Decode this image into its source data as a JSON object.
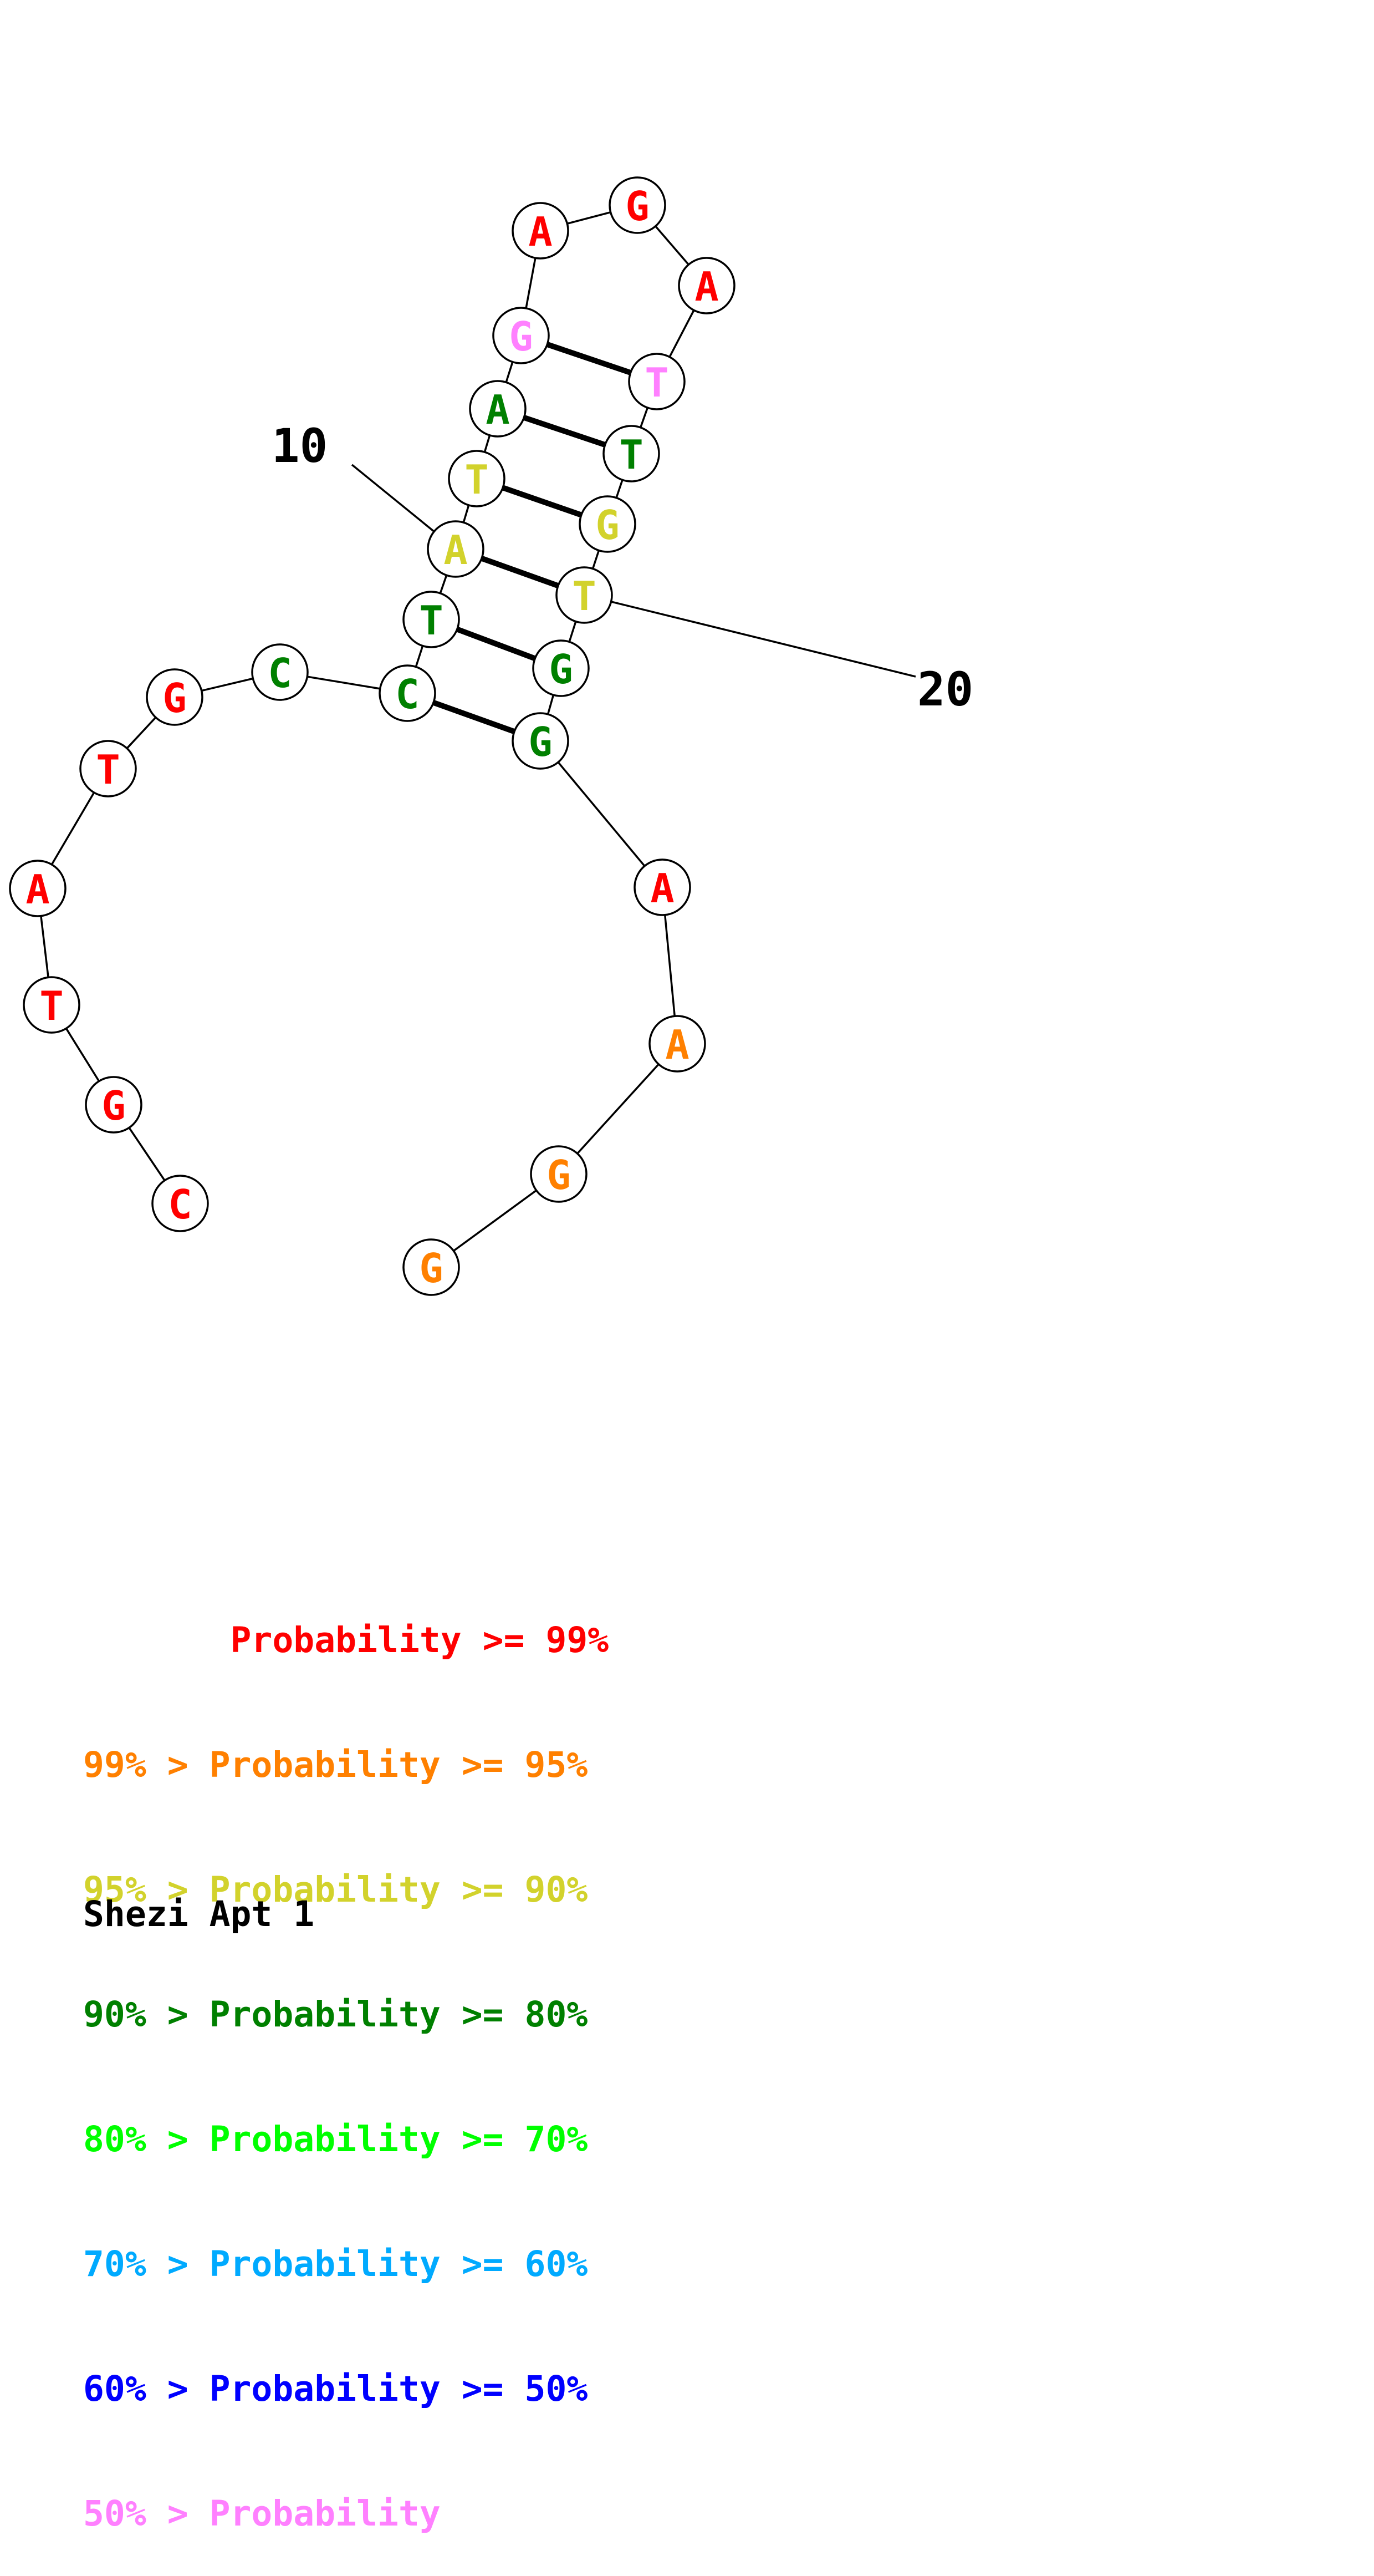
{
  "colors": {
    "p99": "#ff0000",
    "p95": "#ff8000",
    "p90": "#d2d22c",
    "p80": "#008000",
    "p70": "#00ff00",
    "p60": "#00aaff",
    "p50": "#0000ff",
    "plow": "#ff80ff"
  },
  "structure": {
    "nucleotides": [
      {
        "index": 1,
        "base": "C",
        "prob_class": "p99"
      },
      {
        "index": 2,
        "base": "G",
        "prob_class": "p99"
      },
      {
        "index": 3,
        "base": "T",
        "prob_class": "p99"
      },
      {
        "index": 4,
        "base": "A",
        "prob_class": "p99"
      },
      {
        "index": 5,
        "base": "T",
        "prob_class": "p99"
      },
      {
        "index": 6,
        "base": "G",
        "prob_class": "p99"
      },
      {
        "index": 7,
        "base": "C",
        "prob_class": "p80"
      },
      {
        "index": 8,
        "base": "C",
        "prob_class": "p80"
      },
      {
        "index": 9,
        "base": "T",
        "prob_class": "p80"
      },
      {
        "index": 10,
        "base": "A",
        "prob_class": "p90"
      },
      {
        "index": 11,
        "base": "T",
        "prob_class": "p90"
      },
      {
        "index": 12,
        "base": "A",
        "prob_class": "p80"
      },
      {
        "index": 13,
        "base": "G",
        "prob_class": "plow"
      },
      {
        "index": 14,
        "base": "A",
        "prob_class": "p99"
      },
      {
        "index": 15,
        "base": "G",
        "prob_class": "p99"
      },
      {
        "index": 16,
        "base": "A",
        "prob_class": "p99"
      },
      {
        "index": 17,
        "base": "T",
        "prob_class": "plow"
      },
      {
        "index": 18,
        "base": "T",
        "prob_class": "p80"
      },
      {
        "index": 19,
        "base": "G",
        "prob_class": "p90"
      },
      {
        "index": 20,
        "base": "T",
        "prob_class": "p90"
      },
      {
        "index": 21,
        "base": "G",
        "prob_class": "p80"
      },
      {
        "index": 22,
        "base": "G",
        "prob_class": "p80"
      },
      {
        "index": 23,
        "base": "A",
        "prob_class": "p99"
      },
      {
        "index": 24,
        "base": "A",
        "prob_class": "p95"
      },
      {
        "index": 25,
        "base": "G",
        "prob_class": "p95"
      },
      {
        "index": 26,
        "base": "G",
        "prob_class": "p95"
      }
    ],
    "pairs": [
      [
        8,
        22
      ],
      [
        9,
        21
      ],
      [
        10,
        20
      ],
      [
        11,
        19
      ],
      [
        12,
        18
      ],
      [
        13,
        17
      ]
    ],
    "position_labels": [
      {
        "text": "10",
        "nucleotide": 10
      },
      {
        "text": "20",
        "nucleotide": 20
      }
    ]
  },
  "legend": [
    {
      "text": "       Probability >= 99%",
      "color": "p99"
    },
    {
      "text": "99% > Probability >= 95%",
      "color": "p95"
    },
    {
      "text": "95% > Probability >= 90%",
      "color": "p90"
    },
    {
      "text": "90% > Probability >= 80%",
      "color": "p80"
    },
    {
      "text": "80% > Probability >= 70%",
      "color": "p70"
    },
    {
      "text": "70% > Probability >= 60%",
      "color": "p60"
    },
    {
      "text": "60% > Probability >= 50%",
      "color": "p50"
    },
    {
      "text": "50% > Probability",
      "color": "plow"
    }
  ],
  "title": "Shezi Apt 1"
}
